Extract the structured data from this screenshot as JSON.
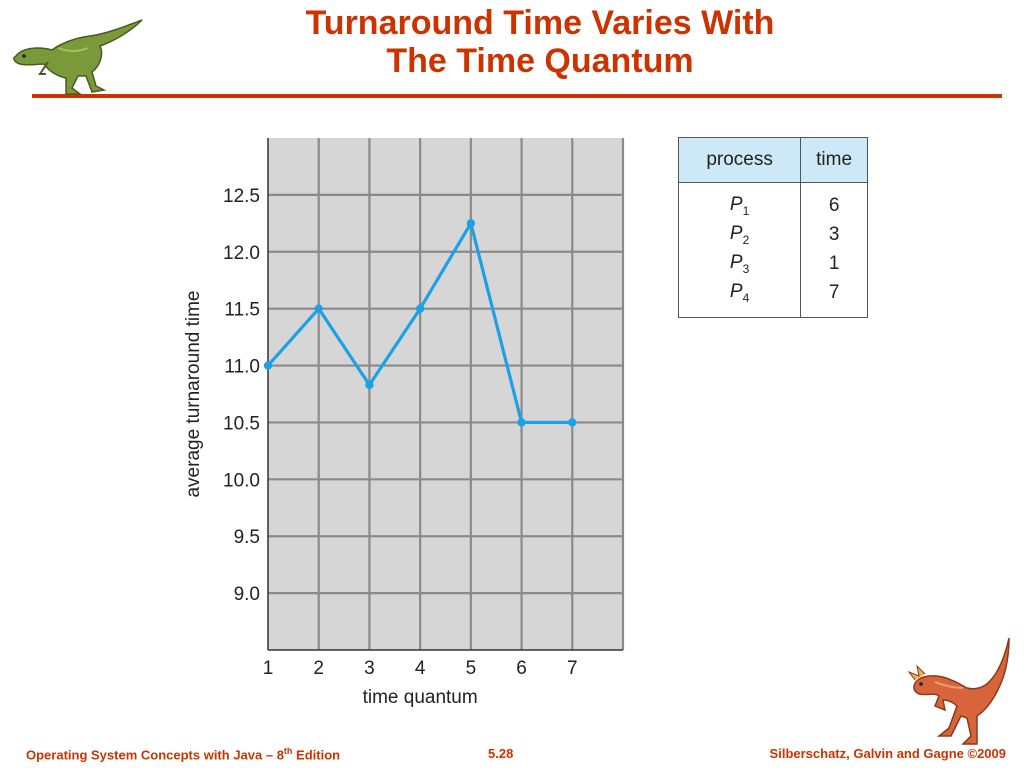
{
  "slide": {
    "title_line1": "Turnaround Time Varies With",
    "title_line2": "The Time Quantum"
  },
  "chart_data": {
    "type": "line",
    "xlabel": "time quantum",
    "ylabel": "average turnaround time",
    "x": [
      1,
      2,
      3,
      4,
      5,
      6,
      7
    ],
    "xlim": [
      1,
      8
    ],
    "ylim": [
      8.5,
      13.0
    ],
    "yticks": [
      9.0,
      9.5,
      10.0,
      10.5,
      11.0,
      11.5,
      12.0,
      12.5
    ],
    "ytick_labels": [
      "9.0",
      "9.5",
      "10.0",
      "10.5",
      "11.0",
      "11.5",
      "12.0",
      "12.5"
    ],
    "xtick_labels": [
      "1",
      "2",
      "3",
      "4",
      "5",
      "6",
      "7"
    ],
    "grid": true,
    "series": [
      {
        "values": [
          11.0,
          11.5,
          10.83,
          11.5,
          12.25,
          10.5,
          10.5
        ],
        "color": "#1aa1e6"
      }
    ],
    "plot_background": "#d6d6d6"
  },
  "table": {
    "headers": [
      "process",
      "time"
    ],
    "rows": [
      {
        "name": "P",
        "sub": "1",
        "time": "6"
      },
      {
        "name": "P",
        "sub": "2",
        "time": "3"
      },
      {
        "name": "P",
        "sub": "3",
        "time": "1"
      },
      {
        "name": "P",
        "sub": "4",
        "time": "7"
      }
    ]
  },
  "footer": {
    "left_text": "Operating System Concepts with Java – 8",
    "left_sup": "th",
    "left_suffix": " Edition",
    "center": "5.28",
    "right": "Silberschatz, Galvin and Gagne ©2009"
  },
  "colors": {
    "title": "#cc3300",
    "line": "#1aa1e6",
    "header_fill": "#cde9f8"
  }
}
